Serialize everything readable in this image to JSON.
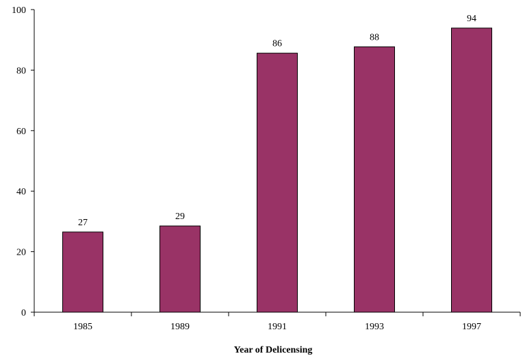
{
  "chart_data": {
    "type": "bar",
    "title": "",
    "xlabel": "Year of Delicensing",
    "ylabel": "",
    "categories": [
      "1985",
      "1989",
      "1991",
      "1993",
      "1997"
    ],
    "values": [
      26.5,
      28.5,
      85.6,
      87.7,
      93.9
    ],
    "data_labels": [
      "27",
      "29",
      "86",
      "88",
      "94"
    ],
    "ylim": [
      0,
      100
    ],
    "yticks": [
      "0",
      "20",
      "40",
      "60",
      "80",
      "100"
    ],
    "ytick_values": [
      0,
      20,
      40,
      60,
      80,
      100
    ],
    "grid": false,
    "legend": "none",
    "colors": {
      "bar": "#993366",
      "bar_edge": "#000000",
      "axis": "#000000"
    }
  }
}
